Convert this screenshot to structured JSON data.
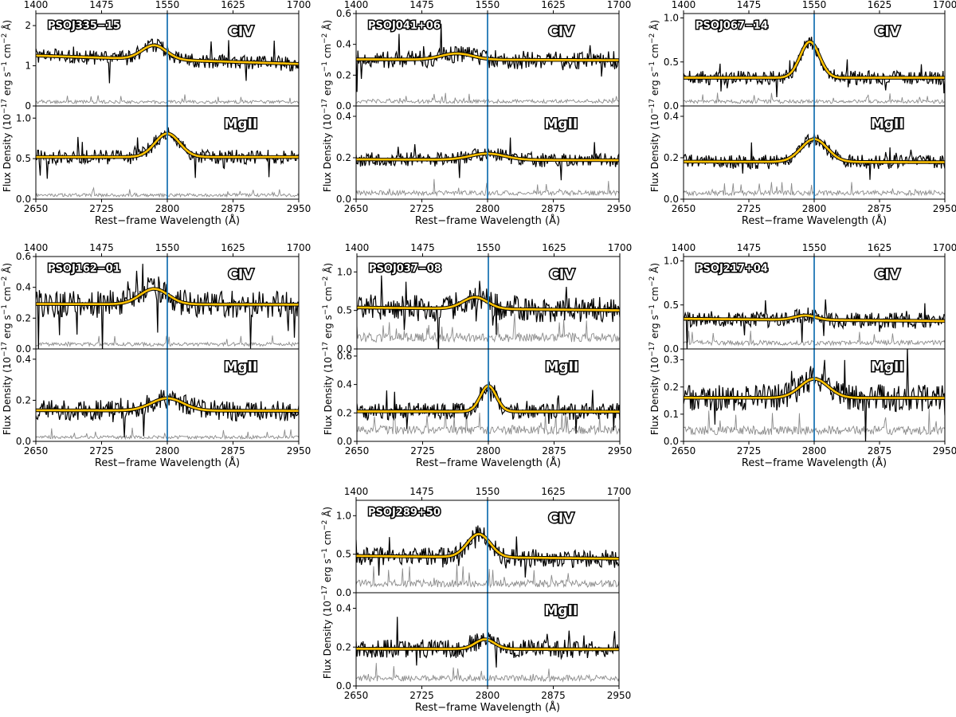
{
  "figure": {
    "ylabel_main": "Flux Density (10",
    "ylabel_exp1": "−17",
    "ylabel_mid1": " erg s",
    "ylabel_exp2": "−1",
    "ylabel_mid2": " cm",
    "ylabel_exp3": "−2",
    "ylabel_end": " Å)",
    "xlabel": "Rest−frame Wavelength (Å)",
    "colors": {
      "spectrum": "#000000",
      "error": "#8c8c8c",
      "model": "#ffc200",
      "marker": "#1f77b4"
    }
  },
  "chart_data": [
    {
      "type": "line",
      "name": "PSOJ335−15",
      "top": {
        "label": "CIV",
        "xticks": [
          1400,
          1475,
          1550,
          1625,
          1700
        ],
        "xlim": [
          1400,
          1700
        ],
        "ylim": [
          0,
          2.3
        ],
        "yticks": [
          0,
          1,
          2
        ],
        "continuum": 1.15,
        "slope": -0.3,
        "peak": 0.35,
        "center": 1535,
        "width": 14,
        "noise": 0.18,
        "err": 0.1,
        "marker": 1550
      },
      "bottom": {
        "label": "MgII",
        "xticks": [
          2650,
          2725,
          2800,
          2875,
          2950
        ],
        "xlim": [
          2650,
          2950
        ],
        "ylim": [
          0,
          1.15
        ],
        "yticks": [
          0.0,
          0.5,
          1.0
        ],
        "continuum": 0.52,
        "slope": 0.0,
        "peak": 0.29,
        "center": 2800,
        "width": 14,
        "noise": 0.09,
        "err": 0.05,
        "marker": 2800
      }
    },
    {
      "type": "line",
      "name": "PSOJ041+06",
      "top": {
        "label": "CIV",
        "xticks": [
          1400,
          1475,
          1550,
          1625,
          1700
        ],
        "xlim": [
          1400,
          1700
        ],
        "ylim": [
          0,
          0.6
        ],
        "yticks": [
          0.0,
          0.2,
          0.4,
          0.6
        ],
        "continuum": 0.3,
        "slope": -0.03,
        "peak": 0.04,
        "center": 1515,
        "width": 18,
        "noise": 0.06,
        "err": 0.03,
        "marker": 1550
      },
      "bottom": {
        "label": "MgII",
        "xticks": [
          2650,
          2725,
          2800,
          2875,
          2950
        ],
        "xlim": [
          2650,
          2950
        ],
        "ylim": [
          0,
          0.45
        ],
        "yticks": [
          0.0,
          0.2,
          0.4
        ],
        "continuum": 0.19,
        "slope": -0.03,
        "peak": 0.03,
        "center": 2800,
        "width": 20,
        "noise": 0.035,
        "err": 0.03,
        "marker": 2800
      }
    },
    {
      "type": "line",
      "name": "PSOJ067−14",
      "top": {
        "label": "CIV",
        "xticks": [
          1400,
          1475,
          1550,
          1625,
          1700
        ],
        "xlim": [
          1400,
          1700
        ],
        "ylim": [
          0,
          1.05
        ],
        "yticks": [
          0.0,
          0.5,
          1.0
        ],
        "continuum": 0.32,
        "slope": 0.0,
        "peak": 0.41,
        "center": 1545,
        "width": 11,
        "noise": 0.08,
        "err": 0.05,
        "marker": 1550
      },
      "bottom": {
        "label": "MgII",
        "xticks": [
          2650,
          2725,
          2800,
          2875,
          2950
        ],
        "xlim": [
          2650,
          2950
        ],
        "ylim": [
          0,
          0.45
        ],
        "yticks": [
          0.0,
          0.2,
          0.4
        ],
        "continuum": 0.18,
        "slope": -0.02,
        "peak": 0.11,
        "center": 2800,
        "width": 15,
        "noise": 0.035,
        "err": 0.03,
        "marker": 2800
      }
    },
    {
      "type": "line",
      "name": "PSOJ162−01",
      "top": {
        "label": "CIV",
        "xticks": [
          1400,
          1475,
          1550,
          1625,
          1700
        ],
        "xlim": [
          1400,
          1700
        ],
        "ylim": [
          0,
          0.6
        ],
        "yticks": [
          0.0,
          0.2,
          0.4,
          0.6
        ],
        "continuum": 0.29,
        "slope": -0.02,
        "peak": 0.1,
        "center": 1535,
        "width": 16,
        "noise": 0.09,
        "err": 0.03,
        "marker": 1550
      },
      "bottom": {
        "label": "MgII",
        "xticks": [
          2650,
          2725,
          2800,
          2875,
          2950
        ],
        "xlim": [
          2650,
          2950
        ],
        "ylim": [
          0,
          0.45
        ],
        "yticks": [
          0.0,
          0.2,
          0.4
        ],
        "continuum": 0.15,
        "slope": -0.02,
        "peak": 0.06,
        "center": 2800,
        "width": 18,
        "noise": 0.05,
        "err": 0.02,
        "marker": 2800
      }
    },
    {
      "type": "line",
      "name": "PSOJ037−08",
      "top": {
        "label": "CIV",
        "xticks": [
          1400,
          1475,
          1550,
          1625,
          1700
        ],
        "xlim": [
          1400,
          1700
        ],
        "ylim": [
          0,
          1.2
        ],
        "yticks": [
          0.0,
          0.5,
          1.0
        ],
        "continuum": 0.52,
        "slope": -0.1,
        "peak": 0.15,
        "center": 1535,
        "width": 14,
        "noise": 0.17,
        "err": 0.15,
        "marker": 1550
      },
      "bottom": {
        "label": "MgII",
        "xticks": [
          2650,
          2725,
          2800,
          2875,
          2950
        ],
        "xlim": [
          2650,
          2950
        ],
        "ylim": [
          0,
          0.65
        ],
        "yticks": [
          0.0,
          0.2,
          0.4,
          0.6
        ],
        "continuum": 0.21,
        "slope": -0.01,
        "peak": 0.18,
        "center": 2800,
        "width": 9,
        "noise": 0.06,
        "err": 0.08,
        "marker": 2800
      }
    },
    {
      "type": "line",
      "name": "PSOJ217+04",
      "top": {
        "label": "CIV",
        "xticks": [
          1400,
          1475,
          1550,
          1625,
          1700
        ],
        "xlim": [
          1400,
          1700
        ],
        "ylim": [
          0,
          1.05
        ],
        "yticks": [
          0.0,
          0.5,
          1.0
        ],
        "continuum": 0.33,
        "slope": -0.08,
        "peak": 0.05,
        "center": 1540,
        "width": 12,
        "noise": 0.09,
        "err": 0.07,
        "marker": 1550
      },
      "bottom": {
        "label": "MgII",
        "xticks": [
          2650,
          2725,
          2800,
          2875,
          2950
        ],
        "xlim": [
          2650,
          2950
        ],
        "ylim": [
          0,
          0.34
        ],
        "yticks": [
          0.0,
          0.1,
          0.2,
          0.3
        ],
        "continuum": 0.16,
        "slope": -0.01,
        "peak": 0.07,
        "center": 2800,
        "width": 16,
        "noise": 0.05,
        "err": 0.04,
        "marker": 2800
      }
    },
    {
      "type": "line",
      "name": "PSOJ289+50",
      "top": {
        "label": "CIV",
        "xticks": [
          1400,
          1475,
          1550,
          1625,
          1700
        ],
        "xlim": [
          1400,
          1700
        ],
        "ylim": [
          0,
          1.2
        ],
        "yticks": [
          0.0,
          0.5,
          1.0
        ],
        "continuum": 0.46,
        "slope": -0.1,
        "peak": 0.3,
        "center": 1540,
        "width": 13,
        "noise": 0.12,
        "err": 0.12,
        "marker": 1550
      },
      "bottom": {
        "label": "MgII",
        "xticks": [
          2650,
          2725,
          2800,
          2875,
          2950
        ],
        "xlim": [
          2650,
          2950
        ],
        "ylim": [
          0,
          0.48
        ],
        "yticks": [
          0.0,
          0.2,
          0.4
        ],
        "continuum": 0.19,
        "slope": -0.02,
        "peak": 0.05,
        "center": 2797,
        "width": 11,
        "noise": 0.05,
        "err": 0.04,
        "marker": 2800
      }
    }
  ]
}
